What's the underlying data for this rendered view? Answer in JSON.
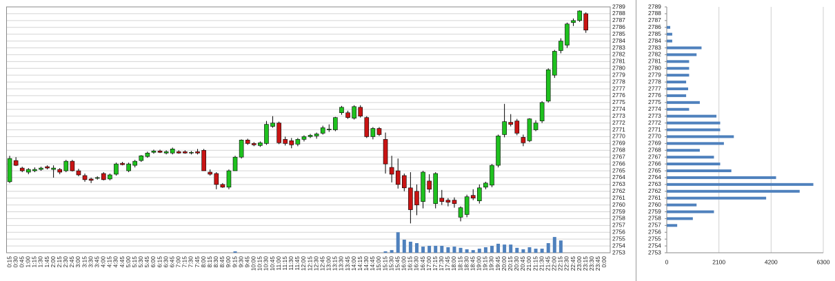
{
  "chart_data": [
    {
      "type": "candlestick",
      "categories": [
        "0:15",
        "0:30",
        "0:45",
        "1:00",
        "1:15",
        "1:30",
        "1:45",
        "2:00",
        "2:15",
        "2:30",
        "2:45",
        "3:00",
        "3:15",
        "3:30",
        "3:45",
        "4:00",
        "4:15",
        "4:30",
        "4:45",
        "5:00",
        "5:15",
        "5:30",
        "5:45",
        "6:00",
        "6:15",
        "6:30",
        "6:45",
        "7:00",
        "7:15",
        "7:30",
        "7:45",
        "8:00",
        "8:15",
        "8:30",
        "8:45",
        "9:00",
        "9:15",
        "9:30",
        "9:45",
        "10:00",
        "10:15",
        "10:30",
        "10:45",
        "11:00",
        "11:15",
        "11:30",
        "11:45",
        "12:00",
        "12:15",
        "12:30",
        "12:45",
        "13:00",
        "13:15",
        "13:30",
        "13:45",
        "14:00",
        "14:15",
        "14:30",
        "14:45",
        "15:00",
        "15:15",
        "15:30",
        "15:45",
        "16:00",
        "16:15",
        "16:30",
        "16:45",
        "17:00",
        "17:15",
        "17:30",
        "17:45",
        "18:00",
        "18:15",
        "18:30",
        "18:45",
        "19:00",
        "19:15",
        "19:30",
        "19:45",
        "20:00",
        "20:15",
        "20:30",
        "20:45",
        "21:00",
        "21:15",
        "21:30",
        "21:45",
        "22:00",
        "22:15",
        "22:30",
        "22:45",
        "23:00",
        "23:15",
        "23:30",
        "23:45",
        "0:00"
      ],
      "open": [
        2763.4,
        2766.5,
        2765.4,
        2764.8,
        2765,
        2765.2,
        2765.6,
        2765.2,
        2765.2,
        2765,
        2766.4,
        2765,
        2764.3,
        2763.8,
        2763.9,
        2764.6,
        2763.8,
        2764.5,
        2766.1,
        2765,
        2765.8,
        2766.5,
        2767.1,
        2767.7,
        2767.9,
        2767.6,
        2767.6,
        2767.8,
        2767.8,
        2767.6,
        2767.8,
        2768,
        2764.8,
        2764.6,
        2763,
        2762.6,
        2765,
        2767,
        2769.5,
        2769,
        2768.7,
        2769,
        2771.5,
        2772,
        2769.6,
        2769.4,
        2768.9,
        2769.6,
        2770,
        2770.1,
        2770.5,
        2771,
        2771,
        2773.5,
        2773.5,
        2772.7,
        2774.3,
        2772.8,
        2770,
        2771.2,
        2769.6,
        2765.5,
        2765,
        2764.3,
        2762.5,
        2762,
        2760.5,
        2763.5,
        2760.2,
        2761,
        2760.7,
        2760.7,
        2758.2,
        2758.6,
        2761.4,
        2760.6,
        2762.6,
        2762.9,
        2765.8,
        2770.3,
        2772.1,
        2772.3,
        2769.9,
        2769.4,
        2771,
        2772.3,
        2775.2,
        2779,
        2782.6,
        2783.4,
        2786.7,
        2787,
        2788,
        null,
        null,
        null
      ],
      "high": [
        2767.2,
        2767,
        2765.6,
        2765.4,
        2765.5,
        2765.6,
        2765.8,
        2765.8,
        2765.4,
        2766.6,
        2766.6,
        2765.3,
        2764.6,
        2764,
        2764.2,
        2764.8,
        2764.6,
        2766.2,
        2766.3,
        2766.2,
        2766.6,
        2767.3,
        2767.8,
        2768.1,
        2768.1,
        2768,
        2768.4,
        2768,
        2768,
        2767.9,
        2768.2,
        2768.2,
        2765.2,
        2764.8,
        2763.2,
        2765.2,
        2767.2,
        2769.6,
        2769.7,
        2769.2,
        2769.3,
        2772.3,
        2773,
        2772.2,
        2770,
        2769.8,
        2769.8,
        2770.2,
        2770.4,
        2770.6,
        2771.6,
        2771.8,
        2772.9,
        2774.5,
        2773.8,
        2774.6,
        2774.6,
        2773,
        2771.4,
        2771.4,
        2770.6,
        2767.2,
        2766.8,
        2764.6,
        2764.8,
        2763,
        2765,
        2764.5,
        2764.8,
        2762.2,
        2761,
        2761.1,
        2759.8,
        2761.5,
        2762.3,
        2763,
        2763.4,
        2766,
        2770.3,
        2774.8,
        2773.3,
        2772.6,
        2770.3,
        2772.7,
        2772.4,
        2775.2,
        2780,
        2782.7,
        2784.4,
        2786.7,
        2787.3,
        2788.5,
        2788.2,
        null,
        null,
        null
      ],
      "low": [
        2763.2,
        2765.7,
        2764.8,
        2764.5,
        2764.8,
        2765,
        2765.2,
        2764,
        2764.5,
        2764.8,
        2764.9,
        2764.2,
        2763.4,
        2763.2,
        2763.7,
        2763.6,
        2763.6,
        2764.3,
        2765.8,
        2764.8,
        2765.5,
        2766.3,
        2766.9,
        2767.5,
        2767.6,
        2767.4,
        2767.4,
        2767.5,
        2767.5,
        2767.4,
        2767.4,
        2765,
        2764.3,
        2762.3,
        2762.5,
        2762.3,
        2765,
        2766.8,
        2768.8,
        2768.6,
        2768.5,
        2768.8,
        2771.3,
        2768.9,
        2768.7,
        2768.3,
        2768.6,
        2769.3,
        2769.8,
        2769.7,
        2770.3,
        2770.7,
        2770.8,
        2773.2,
        2772.6,
        2772.5,
        2772.8,
        2769.8,
        2769.6,
        2770.1,
        2764.6,
        2763.3,
        2762.4,
        2762,
        2757.3,
        2758.5,
        2759.5,
        2761.8,
        2759.5,
        2760,
        2759.8,
        2759.6,
        2757.6,
        2758.2,
        2760.7,
        2760.2,
        2762.3,
        2762.6,
        2765.5,
        2769.9,
        2771.5,
        2770.2,
        2768.6,
        2769.2,
        2770.8,
        2772,
        2775,
        2778.6,
        2782.2,
        2783,
        2786.2,
        2786.8,
        2785.2,
        null,
        null,
        null
      ],
      "close": [
        2766.8,
        2765.8,
        2765,
        2765.2,
        2765.2,
        2765.4,
        2765.4,
        2765.4,
        2764.8,
        2766.4,
        2765,
        2764.4,
        2763.7,
        2763.6,
        2764,
        2763.7,
        2764.4,
        2766,
        2765.9,
        2766,
        2766.4,
        2767.2,
        2767.6,
        2767.9,
        2767.7,
        2767.8,
        2768.2,
        2767.6,
        2767.6,
        2767.7,
        2767.6,
        2765,
        2764.5,
        2763,
        2762.6,
        2765,
        2767,
        2769.5,
        2769,
        2768.8,
        2769.1,
        2771.8,
        2772,
        2769.1,
        2769,
        2768.8,
        2769.6,
        2770,
        2770.2,
        2770.4,
        2771.3,
        2771.1,
        2772.8,
        2774.3,
        2772.8,
        2774.4,
        2773,
        2770,
        2771.2,
        2770.3,
        2766,
        2764.5,
        2763,
        2762.5,
        2759.3,
        2760,
        2764.8,
        2762.3,
        2764.6,
        2760.5,
        2760.4,
        2760.2,
        2759.6,
        2761.2,
        2761,
        2762.5,
        2763.2,
        2765.8,
        2770.1,
        2772.2,
        2771.8,
        2770.5,
        2769.1,
        2772.6,
        2772,
        2775,
        2779.8,
        2782.5,
        2784,
        2786.5,
        2787,
        2788.4,
        2785.6,
        null,
        null,
        null
      ],
      "volume": [
        null,
        null,
        null,
        null,
        null,
        null,
        null,
        null,
        null,
        null,
        null,
        null,
        null,
        null,
        null,
        null,
        null,
        null,
        null,
        null,
        null,
        null,
        null,
        null,
        null,
        null,
        null,
        null,
        null,
        null,
        null,
        null,
        null,
        null,
        null,
        null,
        70,
        null,
        null,
        null,
        null,
        null,
        null,
        null,
        null,
        null,
        null,
        null,
        null,
        null,
        null,
        null,
        null,
        null,
        null,
        null,
        null,
        null,
        null,
        null,
        70,
        130,
        1000,
        640,
        540,
        470,
        300,
        340,
        340,
        340,
        270,
        300,
        240,
        170,
        130,
        200,
        270,
        340,
        440,
        400,
        400,
        240,
        170,
        270,
        200,
        200,
        470,
        770,
        600,
        null,
        null,
        null,
        null,
        null,
        null,
        null
      ],
      "up_color": "#1fc11f",
      "down_color": "#c81414",
      "volume_color": "#4f81bd",
      "ylim": [
        2753,
        2789
      ],
      "y2lim": [
        0,
        12000
      ],
      "yticks": [
        2753,
        2754,
        2755,
        2756,
        2757,
        2758,
        2759,
        2760,
        2761,
        2762,
        2763,
        2764,
        2765,
        2766,
        2767,
        2768,
        2769,
        2770,
        2771,
        2772,
        2773,
        2774,
        2775,
        2776,
        2777,
        2778,
        2779,
        2780,
        2781,
        2782,
        2783,
        2784,
        2785,
        2786,
        2787,
        2788,
        2789
      ],
      "grid": true
    },
    {
      "type": "barh",
      "y": [
        2786,
        2785,
        2784,
        2783,
        2782,
        2781,
        2780,
        2779,
        2778,
        2777,
        2776,
        2775,
        2774,
        2773,
        2772,
        2771,
        2770,
        2769,
        2768,
        2767,
        2766,
        2765,
        2764,
        2763,
        2762,
        2761,
        2760,
        2759,
        2758,
        2757
      ],
      "values": [
        140,
        220,
        220,
        1400,
        1200,
        900,
        900,
        900,
        780,
        860,
        780,
        1330,
        900,
        2000,
        2150,
        2150,
        2700,
        2300,
        1330,
        1900,
        2150,
        2600,
        4400,
        5900,
        5350,
        4000,
        1200,
        1900,
        1050,
        420
      ],
      "color": "#4f81bd",
      "xlim": [
        0,
        6300
      ],
      "xticks": [
        0,
        2100,
        4200,
        6300
      ],
      "ylim": [
        2753,
        2789
      ],
      "yticks": [
        2753,
        2754,
        2755,
        2756,
        2757,
        2758,
        2759,
        2760,
        2761,
        2762,
        2763,
        2764,
        2765,
        2766,
        2767,
        2768,
        2769,
        2770,
        2771,
        2772,
        2773,
        2774,
        2775,
        2776,
        2777,
        2778,
        2779,
        2780,
        2781,
        2782,
        2783,
        2784,
        2785,
        2786,
        2787,
        2788,
        2789
      ],
      "grid": true
    }
  ]
}
